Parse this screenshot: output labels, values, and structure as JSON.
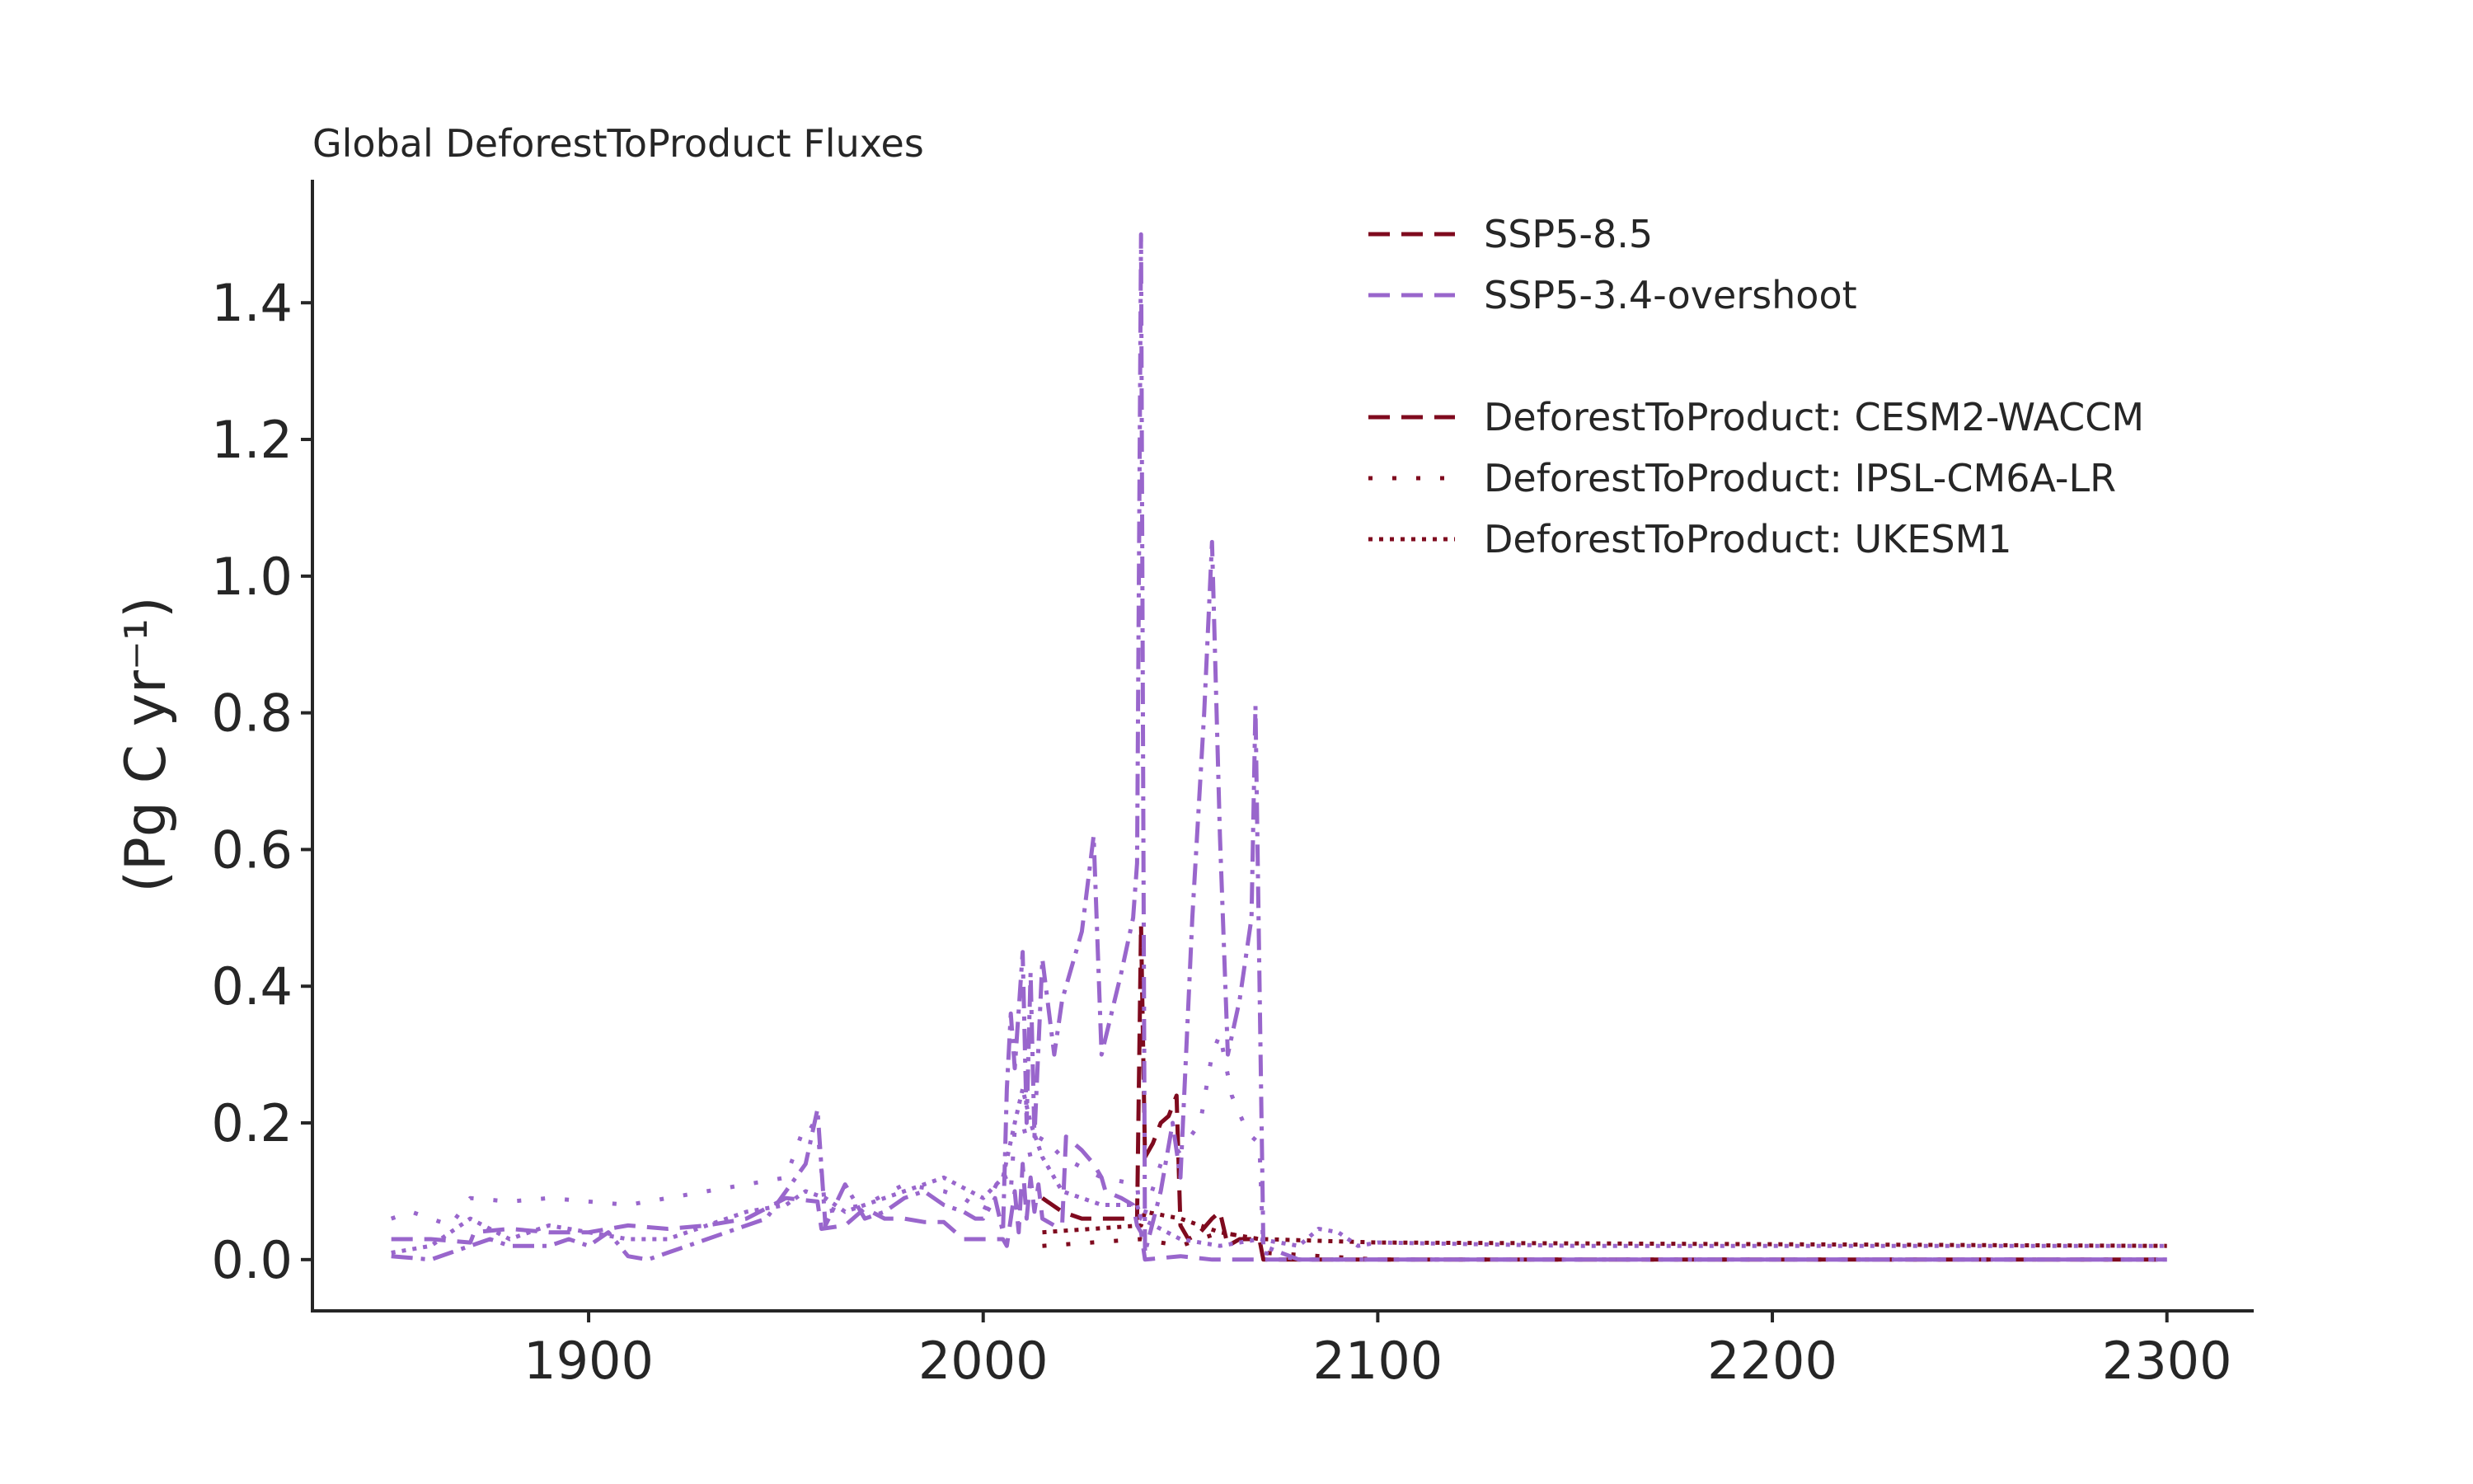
{
  "chart_data": {
    "type": "line",
    "title": "Global DeforestToProduct Fluxes",
    "xlabel": "",
    "ylabel": "(Pg C yr⁻¹)",
    "xlim": [
      1830,
      2322
    ],
    "ylim": [
      -0.075,
      1.58
    ],
    "xticks": [
      1900,
      2000,
      2100,
      2200,
      2300
    ],
    "yticks": [
      0.0,
      0.2,
      0.4,
      0.6,
      0.8,
      1.0,
      1.2,
      1.4
    ],
    "ytick_labels": [
      "0.0",
      "0.2",
      "0.4",
      "0.6",
      "0.8",
      "1.0",
      "1.2",
      "1.4"
    ],
    "grid": false,
    "legend_position": "top-right",
    "colors": {
      "ssp585": "#7f0a1e",
      "ssp534": "#9966cc",
      "axis": "#262626"
    },
    "legend": {
      "scenarios": [
        {
          "label": "SSP5-8.5",
          "color": "#7f0a1e",
          "dash": "long-dash"
        },
        {
          "label": "SSP5-3.4-overshoot",
          "color": "#9966cc",
          "dash": "long-dash"
        }
      ],
      "models": [
        {
          "label": "DeforestToProduct: CESM2-WACCM",
          "color": "#7f0a1e",
          "dash": "long-dash"
        },
        {
          "label": "DeforestToProduct: IPSL-CM6A-LR",
          "color": "#7f0a1e",
          "dash": "sparse-dot"
        },
        {
          "label": "DeforestToProduct: UKESM1",
          "color": "#7f0a1e",
          "dash": "dense-dot"
        }
      ]
    },
    "series": [
      {
        "scenario": "SSP5-8.5",
        "model": "CESM2-WACCM",
        "color": "#7f0a1e",
        "dash": "long-dash",
        "points": [
          [
            2015,
            0.09
          ],
          [
            2020,
            0.07
          ],
          [
            2025,
            0.06
          ],
          [
            2030,
            0.06
          ],
          [
            2035,
            0.06
          ],
          [
            2039,
            0.06
          ],
          [
            2040,
            0.49
          ],
          [
            2041,
            0.15
          ],
          [
            2043,
            0.17
          ],
          [
            2045,
            0.2
          ],
          [
            2047,
            0.21
          ],
          [
            2049,
            0.24
          ],
          [
            2050,
            0.05
          ],
          [
            2052,
            0.03
          ],
          [
            2055,
            0.04
          ],
          [
            2058,
            0.06
          ],
          [
            2060,
            0.07
          ],
          [
            2062,
            0.02
          ],
          [
            2065,
            0.03
          ],
          [
            2068,
            0.03
          ],
          [
            2070,
            0.03
          ],
          [
            2071,
            0.0
          ],
          [
            2100,
            0.0
          ],
          [
            2300,
            0.0
          ]
        ]
      },
      {
        "scenario": "SSP5-8.5",
        "model": "IPSL-CM6A-LR",
        "color": "#7f0a1e",
        "dash": "sparse-dot",
        "points": [
          [
            2015,
            0.02
          ],
          [
            2040,
            0.03
          ],
          [
            2050,
            0.02
          ],
          [
            2060,
            0.04
          ],
          [
            2070,
            0.03
          ],
          [
            2071,
            0.01
          ],
          [
            2100,
            0.0
          ],
          [
            2300,
            0.0
          ]
        ]
      },
      {
        "scenario": "SSP5-8.5",
        "model": "UKESM1",
        "color": "#7f0a1e",
        "dash": "dense-dot",
        "points": [
          [
            2015,
            0.04
          ],
          [
            2040,
            0.05
          ],
          [
            2041,
            0.07
          ],
          [
            2050,
            0.06
          ],
          [
            2060,
            0.04
          ],
          [
            2070,
            0.03
          ],
          [
            2071,
            0.03
          ],
          [
            2100,
            0.025
          ],
          [
            2300,
            0.02
          ]
        ]
      },
      {
        "scenario": "SSP5-3.4-overshoot",
        "model": "CESM2-WACCM",
        "color": "#9966cc",
        "dash": "long-dash",
        "points": [
          [
            1850,
            0.03
          ],
          [
            1860,
            0.03
          ],
          [
            1870,
            0.025
          ],
          [
            1871,
            0.04
          ],
          [
            1880,
            0.045
          ],
          [
            1890,
            0.04
          ],
          [
            1900,
            0.04
          ],
          [
            1910,
            0.05
          ],
          [
            1920,
            0.045
          ],
          [
            1930,
            0.05
          ],
          [
            1940,
            0.06
          ],
          [
            1950,
            0.09
          ],
          [
            1958,
            0.085
          ],
          [
            1959,
            0.045
          ],
          [
            1965,
            0.05
          ],
          [
            1970,
            0.075
          ],
          [
            1975,
            0.06
          ],
          [
            1980,
            0.06
          ],
          [
            1985,
            0.055
          ],
          [
            1990,
            0.055
          ],
          [
            1995,
            0.03
          ],
          [
            2000,
            0.03
          ],
          [
            2005,
            0.03
          ],
          [
            2006,
            0.02
          ],
          [
            2007,
            0.06
          ],
          [
            2008,
            0.1
          ],
          [
            2009,
            0.04
          ],
          [
            2010,
            0.14
          ],
          [
            2011,
            0.06
          ],
          [
            2012,
            0.12
          ],
          [
            2013,
            0.07
          ],
          [
            2014,
            0.11
          ],
          [
            2015,
            0.06
          ],
          [
            2018,
            0.05
          ],
          [
            2020,
            0.05
          ],
          [
            2021,
            0.18
          ],
          [
            2025,
            0.16
          ],
          [
            2028,
            0.14
          ],
          [
            2030,
            0.12
          ],
          [
            2031,
            0.1
          ],
          [
            2035,
            0.09
          ],
          [
            2038,
            0.08
          ],
          [
            2039,
            0.05
          ],
          [
            2040,
            0.04
          ],
          [
            2041,
            0.0
          ],
          [
            2050,
            0.005
          ],
          [
            2058,
            0.0
          ],
          [
            2070,
            0.0
          ],
          [
            2100,
            0.0
          ],
          [
            2300,
            0.0
          ]
        ]
      },
      {
        "scenario": "SSP5-3.4-overshoot",
        "model": "IPSL-CM6A-LR",
        "color": "#9966cc",
        "dash": "sparse-dot",
        "points": [
          [
            1850,
            0.06
          ],
          [
            1855,
            0.07
          ],
          [
            1860,
            0.06
          ],
          [
            1865,
            0.05
          ],
          [
            1870,
            0.09
          ],
          [
            1880,
            0.085
          ],
          [
            1890,
            0.09
          ],
          [
            1900,
            0.085
          ],
          [
            1910,
            0.08
          ],
          [
            1920,
            0.09
          ],
          [
            1930,
            0.1
          ],
          [
            1940,
            0.11
          ],
          [
            1950,
            0.12
          ],
          [
            1955,
            0.2
          ],
          [
            1958,
            0.19
          ],
          [
            1960,
            0.07
          ],
          [
            1970,
            0.08
          ],
          [
            1980,
            0.11
          ],
          [
            1990,
            0.1
          ],
          [
            1995,
            0.09
          ],
          [
            2000,
            0.07
          ],
          [
            2005,
            0.13
          ],
          [
            2007,
            0.1
          ],
          [
            2008,
            0.19
          ],
          [
            2010,
            0.2
          ],
          [
            2012,
            0.15
          ],
          [
            2015,
            0.18
          ],
          [
            2020,
            0.15
          ],
          [
            2030,
            0.12
          ],
          [
            2039,
            0.11
          ],
          [
            2040,
            0.05
          ],
          [
            2045,
            0.14
          ],
          [
            2050,
            0.16
          ],
          [
            2055,
            0.2
          ],
          [
            2058,
            0.3
          ],
          [
            2060,
            0.33
          ],
          [
            2063,
            0.24
          ],
          [
            2066,
            0.2
          ],
          [
            2068,
            0.18
          ],
          [
            2070,
            0.17
          ],
          [
            2071,
            0.01
          ],
          [
            2080,
            0.0
          ],
          [
            2100,
            0.0
          ],
          [
            2300,
            0.0
          ]
        ]
      },
      {
        "scenario": "SSP5-3.4-overshoot",
        "model": "UKESM1",
        "color": "#9966cc",
        "dash": "dense-dot",
        "points": [
          [
            1850,
            0.01
          ],
          [
            1860,
            0.02
          ],
          [
            1870,
            0.06
          ],
          [
            1880,
            0.03
          ],
          [
            1890,
            0.05
          ],
          [
            1900,
            0.04
          ],
          [
            1910,
            0.03
          ],
          [
            1920,
            0.03
          ],
          [
            1930,
            0.05
          ],
          [
            1940,
            0.07
          ],
          [
            1950,
            0.08
          ],
          [
            1955,
            0.1
          ],
          [
            1960,
            0.09
          ],
          [
            1965,
            0.07
          ],
          [
            1970,
            0.08
          ],
          [
            1980,
            0.1
          ],
          [
            1990,
            0.12
          ],
          [
            2000,
            0.09
          ],
          [
            2005,
            0.12
          ],
          [
            2008,
            0.2
          ],
          [
            2010,
            0.25
          ],
          [
            2012,
            0.2
          ],
          [
            2015,
            0.15
          ],
          [
            2020,
            0.1
          ],
          [
            2030,
            0.08
          ],
          [
            2039,
            0.08
          ],
          [
            2040,
            0.06
          ],
          [
            2050,
            0.03
          ],
          [
            2060,
            0.02
          ],
          [
            2070,
            0.03
          ],
          [
            2080,
            0.02
          ],
          [
            2085,
            0.045
          ],
          [
            2090,
            0.04
          ],
          [
            2095,
            0.02
          ],
          [
            2100,
            0.025
          ],
          [
            2150,
            0.02
          ],
          [
            2300,
            0.02
          ]
        ]
      },
      {
        "scenario": "SSP5-3.4-overshoot",
        "model": "CESM2-WACCM",
        "color": "#9966cc",
        "dash": "dash-dot",
        "points": [
          [
            1850,
            0.005
          ],
          [
            1860,
            0.0
          ],
          [
            1865,
            0.01
          ],
          [
            1870,
            0.02
          ],
          [
            1875,
            0.03
          ],
          [
            1880,
            0.02
          ],
          [
            1890,
            0.02
          ],
          [
            1895,
            0.03
          ],
          [
            1900,
            0.02
          ],
          [
            1905,
            0.04
          ],
          [
            1910,
            0.005
          ],
          [
            1915,
            0.0
          ],
          [
            1920,
            0.01
          ],
          [
            1930,
            0.03
          ],
          [
            1940,
            0.05
          ],
          [
            1945,
            0.06
          ],
          [
            1950,
            0.1
          ],
          [
            1955,
            0.14
          ],
          [
            1958,
            0.22
          ],
          [
            1960,
            0.05
          ],
          [
            1965,
            0.11
          ],
          [
            1970,
            0.06
          ],
          [
            1975,
            0.07
          ],
          [
            1980,
            0.09
          ],
          [
            1985,
            0.1
          ],
          [
            1990,
            0.08
          ],
          [
            1995,
            0.07
          ],
          [
            1998,
            0.06
          ],
          [
            2000,
            0.06
          ],
          [
            2003,
            0.09
          ],
          [
            2005,
            0.04
          ],
          [
            2006,
            0.25
          ],
          [
            2007,
            0.36
          ],
          [
            2008,
            0.28
          ],
          [
            2010,
            0.45
          ],
          [
            2011,
            0.2
          ],
          [
            2012,
            0.42
          ],
          [
            2013,
            0.18
          ],
          [
            2015,
            0.44
          ],
          [
            2018,
            0.3
          ],
          [
            2020,
            0.38
          ],
          [
            2025,
            0.48
          ],
          [
            2028,
            0.62
          ],
          [
            2030,
            0.3
          ],
          [
            2035,
            0.42
          ],
          [
            2038,
            0.5
          ],
          [
            2039,
            0.58
          ],
          [
            2040,
            1.5
          ],
          [
            2041,
            0.01
          ],
          [
            2045,
            0.1
          ],
          [
            2048,
            0.2
          ],
          [
            2050,
            0.12
          ],
          [
            2053,
            0.5
          ],
          [
            2056,
            0.8
          ],
          [
            2058,
            1.05
          ],
          [
            2060,
            0.62
          ],
          [
            2062,
            0.3
          ],
          [
            2065,
            0.38
          ],
          [
            2068,
            0.5
          ],
          [
            2069,
            0.81
          ],
          [
            2071,
            0.02
          ],
          [
            2080,
            0.0
          ],
          [
            2100,
            0.0
          ],
          [
            2300,
            0.0
          ]
        ]
      }
    ]
  }
}
